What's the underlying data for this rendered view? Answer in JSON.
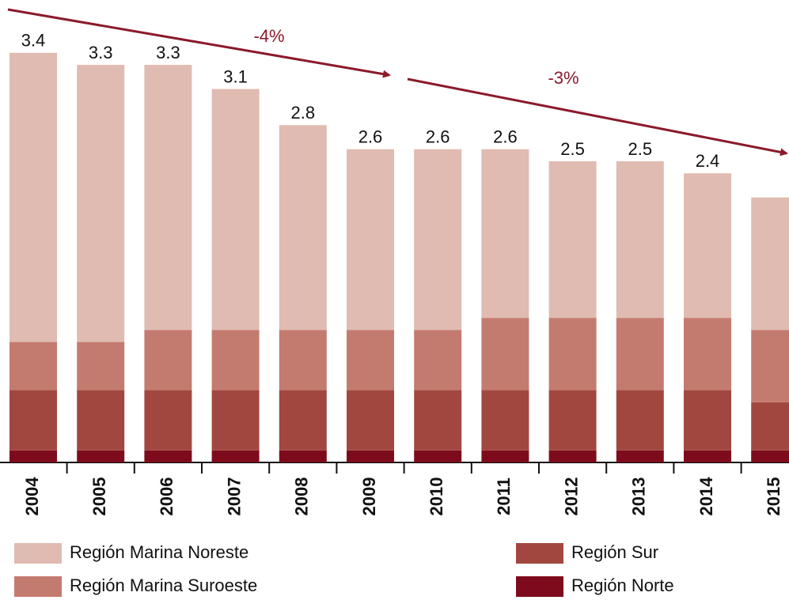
{
  "chart_data": {
    "type": "stacked_bar",
    "categories": [
      "2004",
      "2005",
      "2006",
      "2007",
      "2008",
      "2009",
      "2010",
      "2011",
      "2012",
      "2013",
      "2014",
      "2015"
    ],
    "series": [
      {
        "name": "Región Marina Noreste",
        "color": "#e0bbb1",
        "values": [
          2.4,
          2.3,
          2.2,
          2.0,
          1.7,
          1.5,
          1.5,
          1.4,
          1.3,
          1.3,
          1.2,
          1.1
        ]
      },
      {
        "name": "Región Marina Suroeste",
        "color": "#c47b6f",
        "values": [
          0.4,
          0.4,
          0.5,
          0.5,
          0.5,
          0.5,
          0.5,
          0.6,
          0.6,
          0.6,
          0.6,
          0.6
        ]
      },
      {
        "name": "Región Sur",
        "color": "#a2473f",
        "values": [
          0.5,
          0.5,
          0.5,
          0.5,
          0.5,
          0.5,
          0.5,
          0.5,
          0.5,
          0.5,
          0.5,
          0.4
        ]
      },
      {
        "name": "Región Norte",
        "color": "#7e0b1b",
        "values": [
          0.1,
          0.1,
          0.1,
          0.1,
          0.1,
          0.1,
          0.1,
          0.1,
          0.1,
          0.1,
          0.1,
          0.1
        ]
      }
    ],
    "totals": [
      3.4,
      3.3,
      3.3,
      3.1,
      2.8,
      2.6,
      2.6,
      2.6,
      2.5,
      2.5,
      2.4,
      null
    ],
    "annotations": [
      "-4%",
      "-3%"
    ],
    "annotation_color": "#8b1a2a"
  }
}
